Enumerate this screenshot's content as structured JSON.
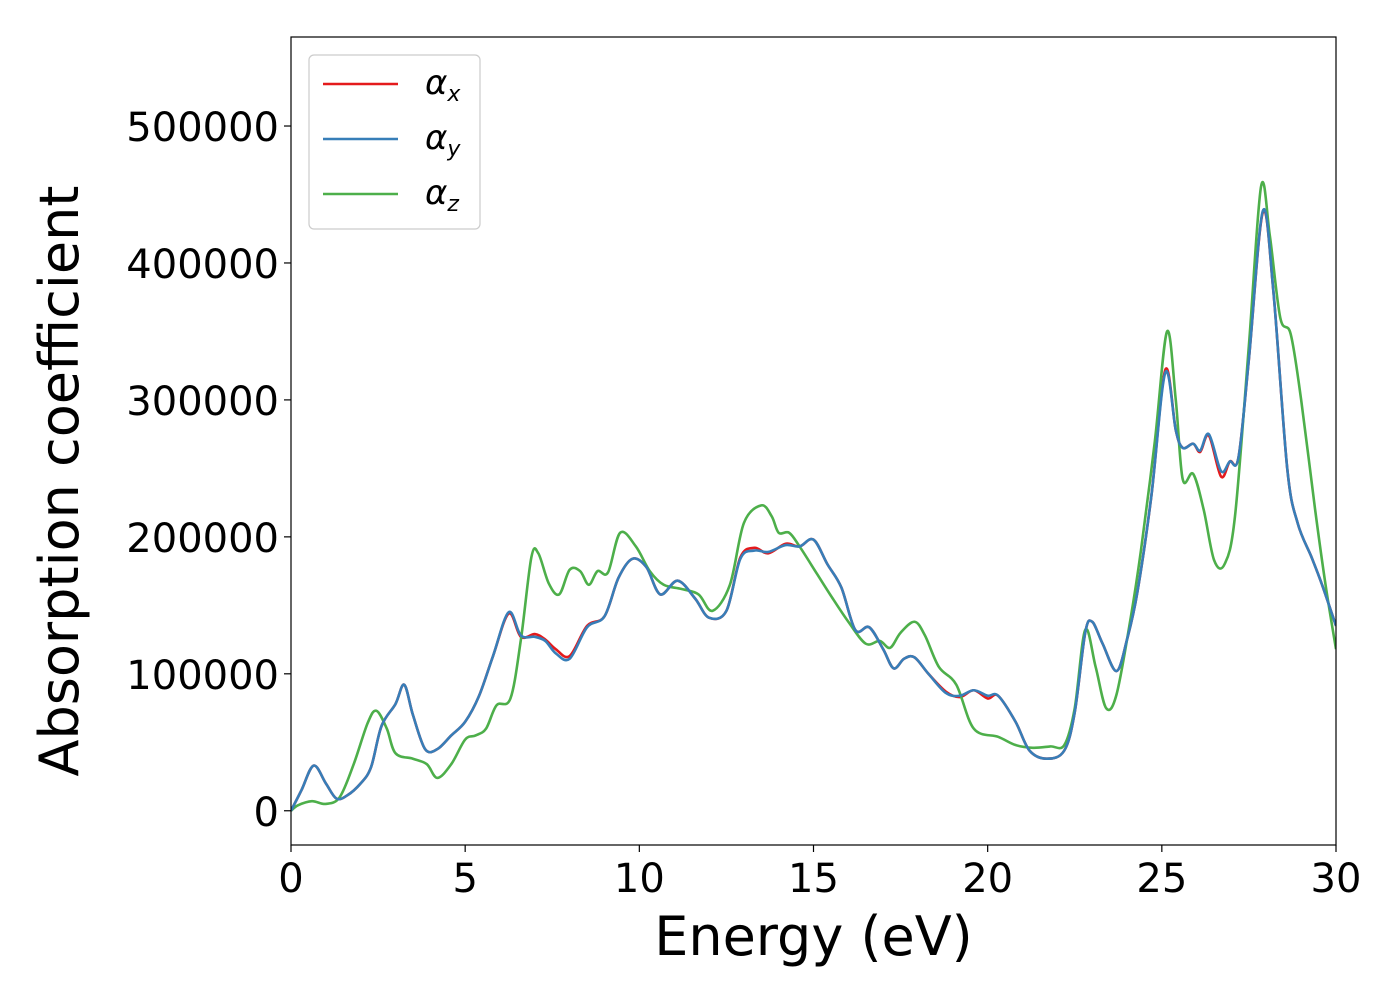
{
  "chart_data": {
    "type": "line",
    "xlabel": "Energy (eV)",
    "ylabel": "Absorption coefficient",
    "xlim": [
      0,
      30
    ],
    "ylim": [
      -25000,
      565000
    ],
    "xticks": [
      0,
      5,
      10,
      15,
      20,
      25,
      30
    ],
    "xtick_labels": [
      "0",
      "5",
      "10",
      "15",
      "20",
      "25",
      "30"
    ],
    "yticks": [
      0,
      100000,
      200000,
      300000,
      400000,
      500000
    ],
    "ytick_labels": [
      "0",
      "100000",
      "200000",
      "300000",
      "400000",
      "500000"
    ],
    "grid": false,
    "legend_position": "top-left",
    "series": [
      {
        "name": "α",
        "sub": "x",
        "color": "#e41a1c",
        "points": [
          [
            0,
            0
          ],
          [
            0.3,
            15000
          ],
          [
            0.65,
            33000
          ],
          [
            1.0,
            20000
          ],
          [
            1.3,
            9000
          ],
          [
            1.6,
            11000
          ],
          [
            2.0,
            20000
          ],
          [
            2.3,
            32000
          ],
          [
            2.6,
            62000
          ],
          [
            3.0,
            78000
          ],
          [
            3.25,
            92000
          ],
          [
            3.5,
            70000
          ],
          [
            3.85,
            45000
          ],
          [
            4.2,
            45000
          ],
          [
            4.6,
            55000
          ],
          [
            5.0,
            65000
          ],
          [
            5.4,
            84000
          ],
          [
            5.8,
            113000
          ],
          [
            6.25,
            144000
          ],
          [
            6.6,
            127000
          ],
          [
            7.0,
            129000
          ],
          [
            7.3,
            125000
          ],
          [
            7.6,
            118000
          ],
          [
            8.0,
            113000
          ],
          [
            8.5,
            135000
          ],
          [
            9.0,
            142000
          ],
          [
            9.4,
            170000
          ],
          [
            9.8,
            184000
          ],
          [
            10.2,
            178000
          ],
          [
            10.6,
            158000
          ],
          [
            11.1,
            168000
          ],
          [
            11.6,
            155000
          ],
          [
            12.0,
            141000
          ],
          [
            12.5,
            146000
          ],
          [
            12.9,
            185000
          ],
          [
            13.3,
            192000
          ],
          [
            13.7,
            188000
          ],
          [
            14.2,
            195000
          ],
          [
            14.6,
            193000
          ],
          [
            15.0,
            198000
          ],
          [
            15.4,
            180000
          ],
          [
            15.8,
            163000
          ],
          [
            16.2,
            132000
          ],
          [
            16.6,
            134000
          ],
          [
            17.0,
            118000
          ],
          [
            17.3,
            104000
          ],
          [
            17.6,
            111000
          ],
          [
            17.9,
            112000
          ],
          [
            18.3,
            100000
          ],
          [
            18.8,
            87000
          ],
          [
            19.2,
            83000
          ],
          [
            19.6,
            88000
          ],
          [
            20.0,
            82000
          ],
          [
            20.3,
            84000
          ],
          [
            20.8,
            65000
          ],
          [
            21.2,
            44000
          ],
          [
            21.7,
            38000
          ],
          [
            22.2,
            44000
          ],
          [
            22.5,
            72000
          ],
          [
            22.8,
            130000
          ],
          [
            23.0,
            138000
          ],
          [
            23.3,
            122000
          ],
          [
            23.7,
            102000
          ],
          [
            24.0,
            125000
          ],
          [
            24.3,
            160000
          ],
          [
            24.7,
            230000
          ],
          [
            25.1,
            322000
          ],
          [
            25.4,
            278000
          ],
          [
            25.6,
            265000
          ],
          [
            25.9,
            268000
          ],
          [
            26.1,
            262000
          ],
          [
            26.35,
            274000
          ],
          [
            26.7,
            244000
          ],
          [
            26.95,
            255000
          ],
          [
            27.2,
            258000
          ],
          [
            27.5,
            330000
          ],
          [
            27.9,
            437000
          ],
          [
            28.2,
            380000
          ],
          [
            28.6,
            250000
          ],
          [
            28.9,
            210000
          ],
          [
            29.3,
            185000
          ],
          [
            29.6,
            165000
          ],
          [
            30.0,
            135000
          ]
        ]
      },
      {
        "name": "α",
        "sub": "y",
        "color": "#377eb8",
        "points": [
          [
            0,
            0
          ],
          [
            0.3,
            15000
          ],
          [
            0.65,
            33000
          ],
          [
            1.0,
            20000
          ],
          [
            1.3,
            9000
          ],
          [
            1.6,
            11000
          ],
          [
            2.0,
            20000
          ],
          [
            2.3,
            32000
          ],
          [
            2.6,
            62000
          ],
          [
            3.0,
            78000
          ],
          [
            3.25,
            92000
          ],
          [
            3.5,
            70000
          ],
          [
            3.85,
            45000
          ],
          [
            4.2,
            45000
          ],
          [
            4.6,
            55000
          ],
          [
            5.0,
            65000
          ],
          [
            5.4,
            84000
          ],
          [
            5.8,
            113000
          ],
          [
            6.25,
            145000
          ],
          [
            6.6,
            128000
          ],
          [
            7.0,
            127000
          ],
          [
            7.3,
            124000
          ],
          [
            7.6,
            115000
          ],
          [
            8.0,
            111000
          ],
          [
            8.5,
            134000
          ],
          [
            9.0,
            142000
          ],
          [
            9.4,
            170000
          ],
          [
            9.8,
            184000
          ],
          [
            10.2,
            178000
          ],
          [
            10.6,
            158000
          ],
          [
            11.1,
            168000
          ],
          [
            11.6,
            155000
          ],
          [
            12.0,
            141000
          ],
          [
            12.5,
            146000
          ],
          [
            12.9,
            184000
          ],
          [
            13.3,
            190000
          ],
          [
            13.7,
            189000
          ],
          [
            14.2,
            194000
          ],
          [
            14.6,
            193000
          ],
          [
            15.0,
            198000
          ],
          [
            15.4,
            180000
          ],
          [
            15.8,
            163000
          ],
          [
            16.2,
            132000
          ],
          [
            16.6,
            134000
          ],
          [
            17.0,
            118000
          ],
          [
            17.3,
            104000
          ],
          [
            17.6,
            111000
          ],
          [
            17.9,
            112000
          ],
          [
            18.3,
            100000
          ],
          [
            18.8,
            86000
          ],
          [
            19.2,
            84000
          ],
          [
            19.6,
            88000
          ],
          [
            20.0,
            84000
          ],
          [
            20.3,
            84000
          ],
          [
            20.8,
            65000
          ],
          [
            21.2,
            44000
          ],
          [
            21.7,
            38000
          ],
          [
            22.2,
            44000
          ],
          [
            22.5,
            72000
          ],
          [
            22.8,
            130000
          ],
          [
            23.0,
            138000
          ],
          [
            23.3,
            122000
          ],
          [
            23.7,
            102000
          ],
          [
            24.0,
            125000
          ],
          [
            24.3,
            160000
          ],
          [
            24.7,
            230000
          ],
          [
            25.1,
            320000
          ],
          [
            25.4,
            278000
          ],
          [
            25.6,
            265000
          ],
          [
            25.9,
            268000
          ],
          [
            26.1,
            263000
          ],
          [
            26.35,
            275000
          ],
          [
            26.7,
            248000
          ],
          [
            26.95,
            255000
          ],
          [
            27.2,
            258000
          ],
          [
            27.5,
            330000
          ],
          [
            27.9,
            438000
          ],
          [
            28.2,
            380000
          ],
          [
            28.6,
            250000
          ],
          [
            28.9,
            210000
          ],
          [
            29.3,
            185000
          ],
          [
            29.6,
            165000
          ],
          [
            30.0,
            135000
          ]
        ]
      },
      {
        "name": "α",
        "sub": "z",
        "color": "#4daf4a",
        "points": [
          [
            0,
            0
          ],
          [
            0.2,
            4000
          ],
          [
            0.6,
            7000
          ],
          [
            1.0,
            5000
          ],
          [
            1.4,
            10000
          ],
          [
            1.8,
            34000
          ],
          [
            2.2,
            64000
          ],
          [
            2.45,
            73000
          ],
          [
            2.75,
            60000
          ],
          [
            3.0,
            42000
          ],
          [
            3.5,
            38000
          ],
          [
            3.9,
            34000
          ],
          [
            4.2,
            24000
          ],
          [
            4.6,
            34000
          ],
          [
            5.0,
            52000
          ],
          [
            5.3,
            55000
          ],
          [
            5.6,
            60000
          ],
          [
            5.9,
            77000
          ],
          [
            6.3,
            82000
          ],
          [
            6.6,
            125000
          ],
          [
            6.9,
            185000
          ],
          [
            7.1,
            188000
          ],
          [
            7.4,
            166000
          ],
          [
            7.7,
            158000
          ],
          [
            8.0,
            176000
          ],
          [
            8.3,
            175000
          ],
          [
            8.55,
            165000
          ],
          [
            8.8,
            175000
          ],
          [
            9.1,
            174000
          ],
          [
            9.45,
            203000
          ],
          [
            9.9,
            193000
          ],
          [
            10.3,
            175000
          ],
          [
            10.7,
            165000
          ],
          [
            11.2,
            162000
          ],
          [
            11.7,
            158000
          ],
          [
            12.1,
            146000
          ],
          [
            12.6,
            165000
          ],
          [
            13.0,
            210000
          ],
          [
            13.5,
            223000
          ],
          [
            13.8,
            215000
          ],
          [
            14.0,
            203000
          ],
          [
            14.3,
            203000
          ],
          [
            14.6,
            193000
          ],
          [
            15.1,
            173000
          ],
          [
            15.5,
            157000
          ],
          [
            16.0,
            138000
          ],
          [
            16.5,
            122000
          ],
          [
            16.9,
            124000
          ],
          [
            17.2,
            119000
          ],
          [
            17.5,
            130000
          ],
          [
            17.9,
            138000
          ],
          [
            18.2,
            128000
          ],
          [
            18.6,
            105000
          ],
          [
            19.1,
            92000
          ],
          [
            19.6,
            60000
          ],
          [
            20.3,
            54000
          ],
          [
            20.8,
            48000
          ],
          [
            21.3,
            46000
          ],
          [
            21.8,
            47000
          ],
          [
            22.2,
            48000
          ],
          [
            22.5,
            75000
          ],
          [
            22.8,
            132000
          ],
          [
            23.1,
            105000
          ],
          [
            23.4,
            75000
          ],
          [
            23.7,
            85000
          ],
          [
            24.1,
            140000
          ],
          [
            24.4,
            190000
          ],
          [
            24.8,
            270000
          ],
          [
            25.15,
            350000
          ],
          [
            25.4,
            300000
          ],
          [
            25.6,
            242000
          ],
          [
            25.9,
            246000
          ],
          [
            26.2,
            220000
          ],
          [
            26.5,
            183000
          ],
          [
            26.8,
            180000
          ],
          [
            27.1,
            215000
          ],
          [
            27.5,
            340000
          ],
          [
            27.85,
            456000
          ],
          [
            28.1,
            420000
          ],
          [
            28.4,
            360000
          ],
          [
            28.7,
            348000
          ],
          [
            29.0,
            300000
          ],
          [
            29.4,
            220000
          ],
          [
            29.7,
            165000
          ],
          [
            30.0,
            118000
          ]
        ]
      }
    ]
  }
}
